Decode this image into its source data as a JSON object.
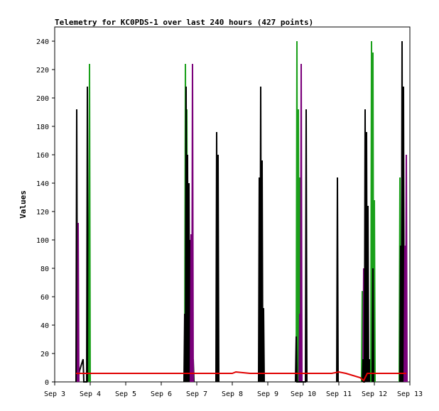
{
  "chart_data": {
    "type": "line",
    "title": "Telemetry for KC0PDS-1 over last 240 hours (427 points)",
    "xlabel": "",
    "ylabel": "Values",
    "ylim": [
      0,
      250
    ],
    "xlim": [
      3.0,
      13.0
    ],
    "x_ticks": [
      {
        "x": 3,
        "label": "Sep 3"
      },
      {
        "x": 4,
        "label": "Sep 4"
      },
      {
        "x": 5,
        "label": "Sep 5"
      },
      {
        "x": 6,
        "label": "Sep 6"
      },
      {
        "x": 7,
        "label": "Sep 7"
      },
      {
        "x": 8,
        "label": "Sep 8"
      },
      {
        "x": 9,
        "label": "Sep 9"
      },
      {
        "x": 10,
        "label": "Sep 10"
      },
      {
        "x": 11,
        "label": "Sep 11"
      },
      {
        "x": 12,
        "label": "Sep 12"
      },
      {
        "x": 13,
        "label": "Sep 13"
      }
    ],
    "y_ticks": [
      0,
      20,
      40,
      60,
      80,
      100,
      120,
      140,
      160,
      180,
      200,
      220,
      240
    ],
    "grid": false,
    "legend": "none",
    "series": [
      {
        "color": "#e00000",
        "points": [
          [
            3.6,
            6
          ],
          [
            8.0,
            6
          ],
          [
            8.1,
            7
          ],
          [
            8.3,
            6.5
          ],
          [
            8.5,
            6
          ],
          [
            10.8,
            6
          ],
          [
            11.0,
            7
          ],
          [
            11.2,
            6
          ],
          [
            11.6,
            3
          ],
          [
            11.7,
            1
          ],
          [
            11.8,
            6
          ],
          [
            12.9,
            6
          ]
        ]
      }
    ],
    "spikes": [
      {
        "color": "#000000",
        "points": [
          [
            3.6,
            0
          ],
          [
            3.62,
            192
          ],
          [
            3.64,
            0
          ],
          [
            3.7,
            8
          ],
          [
            3.8,
            16
          ],
          [
            3.82,
            0
          ],
          [
            3.9,
            0
          ],
          [
            3.92,
            208
          ],
          [
            3.94,
            0
          ]
        ]
      },
      {
        "color": "#7a007a",
        "points": [
          [
            3.64,
            0
          ],
          [
            3.66,
            112
          ],
          [
            3.68,
            0
          ]
        ]
      },
      {
        "color": "#1aa01a",
        "points": [
          [
            3.96,
            0
          ],
          [
            3.98,
            224
          ],
          [
            4.0,
            0
          ]
        ]
      },
      {
        "color": "#1aa01a",
        "points": [
          [
            6.66,
            0
          ],
          [
            6.68,
            224
          ],
          [
            6.7,
            0
          ],
          [
            6.72,
            192
          ],
          [
            6.74,
            0
          ]
        ]
      },
      {
        "color": "#000000",
        "points": [
          [
            6.64,
            0
          ],
          [
            6.66,
            48
          ],
          [
            6.68,
            0
          ],
          [
            6.7,
            208
          ],
          [
            6.72,
            0
          ],
          [
            6.74,
            160
          ],
          [
            6.76,
            0
          ],
          [
            6.78,
            140
          ],
          [
            6.8,
            0
          ],
          [
            6.82,
            100
          ],
          [
            6.84,
            0
          ],
          [
            6.86,
            60
          ],
          [
            6.88,
            0
          ],
          [
            6.9,
            16
          ],
          [
            6.92,
            0
          ]
        ]
      },
      {
        "color": "#7a007a",
        "points": [
          [
            6.82,
            0
          ],
          [
            6.84,
            104
          ],
          [
            6.86,
            0
          ],
          [
            6.88,
            224
          ],
          [
            6.9,
            0
          ]
        ]
      },
      {
        "color": "#000000",
        "points": [
          [
            7.54,
            0
          ],
          [
            7.56,
            176
          ],
          [
            7.58,
            0
          ],
          [
            7.6,
            160
          ],
          [
            7.62,
            0
          ]
        ]
      },
      {
        "color": "#000000",
        "points": [
          [
            8.74,
            0
          ],
          [
            8.76,
            144
          ],
          [
            8.78,
            0
          ],
          [
            8.8,
            208
          ],
          [
            8.82,
            0
          ],
          [
            8.84,
            156
          ],
          [
            8.86,
            0
          ],
          [
            8.88,
            52
          ],
          [
            8.9,
            0
          ]
        ]
      },
      {
        "color": "#1aa01a",
        "points": [
          [
            9.8,
            0
          ],
          [
            9.82,
            240
          ],
          [
            9.84,
            0
          ],
          [
            9.86,
            192
          ],
          [
            9.88,
            0
          ],
          [
            9.9,
            144
          ],
          [
            9.92,
            0
          ],
          [
            9.94,
            112
          ],
          [
            9.96,
            0
          ]
        ]
      },
      {
        "color": "#7a007a",
        "points": [
          [
            9.88,
            0
          ],
          [
            9.9,
            48
          ],
          [
            9.92,
            0
          ],
          [
            9.94,
            224
          ],
          [
            9.96,
            0
          ]
        ]
      },
      {
        "color": "#000000",
        "points": [
          [
            9.78,
            0
          ],
          [
            9.8,
            32
          ],
          [
            9.82,
            0
          ],
          [
            10.06,
            0
          ],
          [
            10.08,
            192
          ],
          [
            10.1,
            0
          ]
        ]
      },
      {
        "color": "#000000",
        "points": [
          [
            10.94,
            0
          ],
          [
            10.96,
            144
          ],
          [
            10.98,
            0
          ]
        ]
      },
      {
        "color": "#1aa01a",
        "points": [
          [
            11.64,
            0
          ],
          [
            11.66,
            64
          ],
          [
            11.68,
            0
          ]
        ]
      },
      {
        "color": "#7a007a",
        "points": [
          [
            11.68,
            0
          ],
          [
            11.7,
            80
          ],
          [
            11.72,
            0
          ],
          [
            11.74,
            16
          ],
          [
            11.76,
            0
          ]
        ]
      },
      {
        "color": "#000000",
        "points": [
          [
            11.66,
            0
          ],
          [
            11.68,
            16
          ],
          [
            11.7,
            0
          ],
          [
            11.72,
            0
          ],
          [
            11.74,
            192
          ],
          [
            11.76,
            0
          ],
          [
            11.78,
            176
          ],
          [
            11.8,
            0
          ],
          [
            11.82,
            124
          ],
          [
            11.84,
            0
          ],
          [
            11.86,
            16
          ],
          [
            11.88,
            0
          ]
        ]
      },
      {
        "color": "#1aa01a",
        "points": [
          [
            11.9,
            0
          ],
          [
            11.92,
            240
          ],
          [
            11.94,
            0
          ],
          [
            11.96,
            232
          ],
          [
            11.98,
            0
          ],
          [
            12.0,
            128
          ],
          [
            12.02,
            0
          ]
        ]
      },
      {
        "color": "#000000",
        "points": [
          [
            11.94,
            0
          ],
          [
            11.96,
            80
          ],
          [
            11.98,
            0
          ]
        ]
      },
      {
        "color": "#1aa01a",
        "points": [
          [
            12.7,
            0
          ],
          [
            12.72,
            144
          ],
          [
            12.74,
            0
          ]
        ]
      },
      {
        "color": "#000000",
        "points": [
          [
            12.72,
            0
          ],
          [
            12.74,
            96
          ],
          [
            12.76,
            0
          ],
          [
            12.78,
            240
          ],
          [
            12.8,
            0
          ],
          [
            12.82,
            208
          ],
          [
            12.84,
            0
          ],
          [
            12.86,
            80
          ],
          [
            12.88,
            0
          ]
        ]
      },
      {
        "color": "#7a007a",
        "points": [
          [
            12.84,
            0
          ],
          [
            12.86,
            96
          ],
          [
            12.88,
            0
          ],
          [
            12.9,
            160
          ],
          [
            12.92,
            0
          ]
        ]
      }
    ]
  }
}
